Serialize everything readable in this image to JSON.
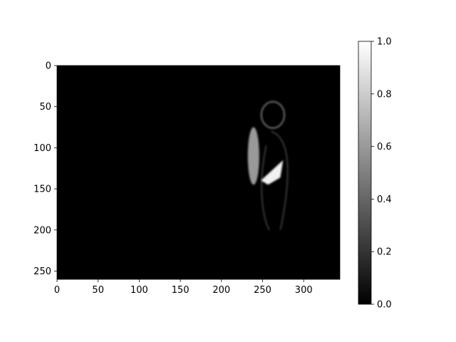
{
  "chart_data": {
    "type": "heatmap",
    "title": "",
    "xlabel": "",
    "ylabel": "",
    "colormap": "gray",
    "image_width": 344,
    "image_height": 260,
    "xlim": [
      0,
      344
    ],
    "ylim": [
      260,
      0
    ],
    "x_ticks": [
      0,
      50,
      100,
      150,
      200,
      250,
      300
    ],
    "y_ticks": [
      0,
      50,
      100,
      150,
      200,
      250
    ],
    "colorbar": {
      "vmin": 0.0,
      "vmax": 1.0,
      "ticks": [
        0.0,
        0.2,
        0.4,
        0.6,
        0.8,
        1.0
      ],
      "tick_labels": [
        "0.0",
        "0.2",
        "0.4",
        "0.6",
        "0.8",
        "1.0"
      ]
    },
    "bright_regions": [
      {
        "name": "head",
        "x": [
          245,
          280
        ],
        "y": [
          40,
          80
        ],
        "value": 0.45
      },
      {
        "name": "raised-hand",
        "x": [
          232,
          246
        ],
        "y": [
          75,
          145
        ],
        "value": 0.75
      },
      {
        "name": "torso-outline",
        "x": [
          245,
          283
        ],
        "y": [
          80,
          200
        ],
        "value": 0.3
      },
      {
        "name": "bright-patch",
        "x": [
          248,
          275
        ],
        "y": [
          115,
          145
        ],
        "value": 0.95
      }
    ]
  },
  "colors": {
    "background": "#ffffff",
    "image_background": "#000000",
    "axis": "#000000"
  }
}
